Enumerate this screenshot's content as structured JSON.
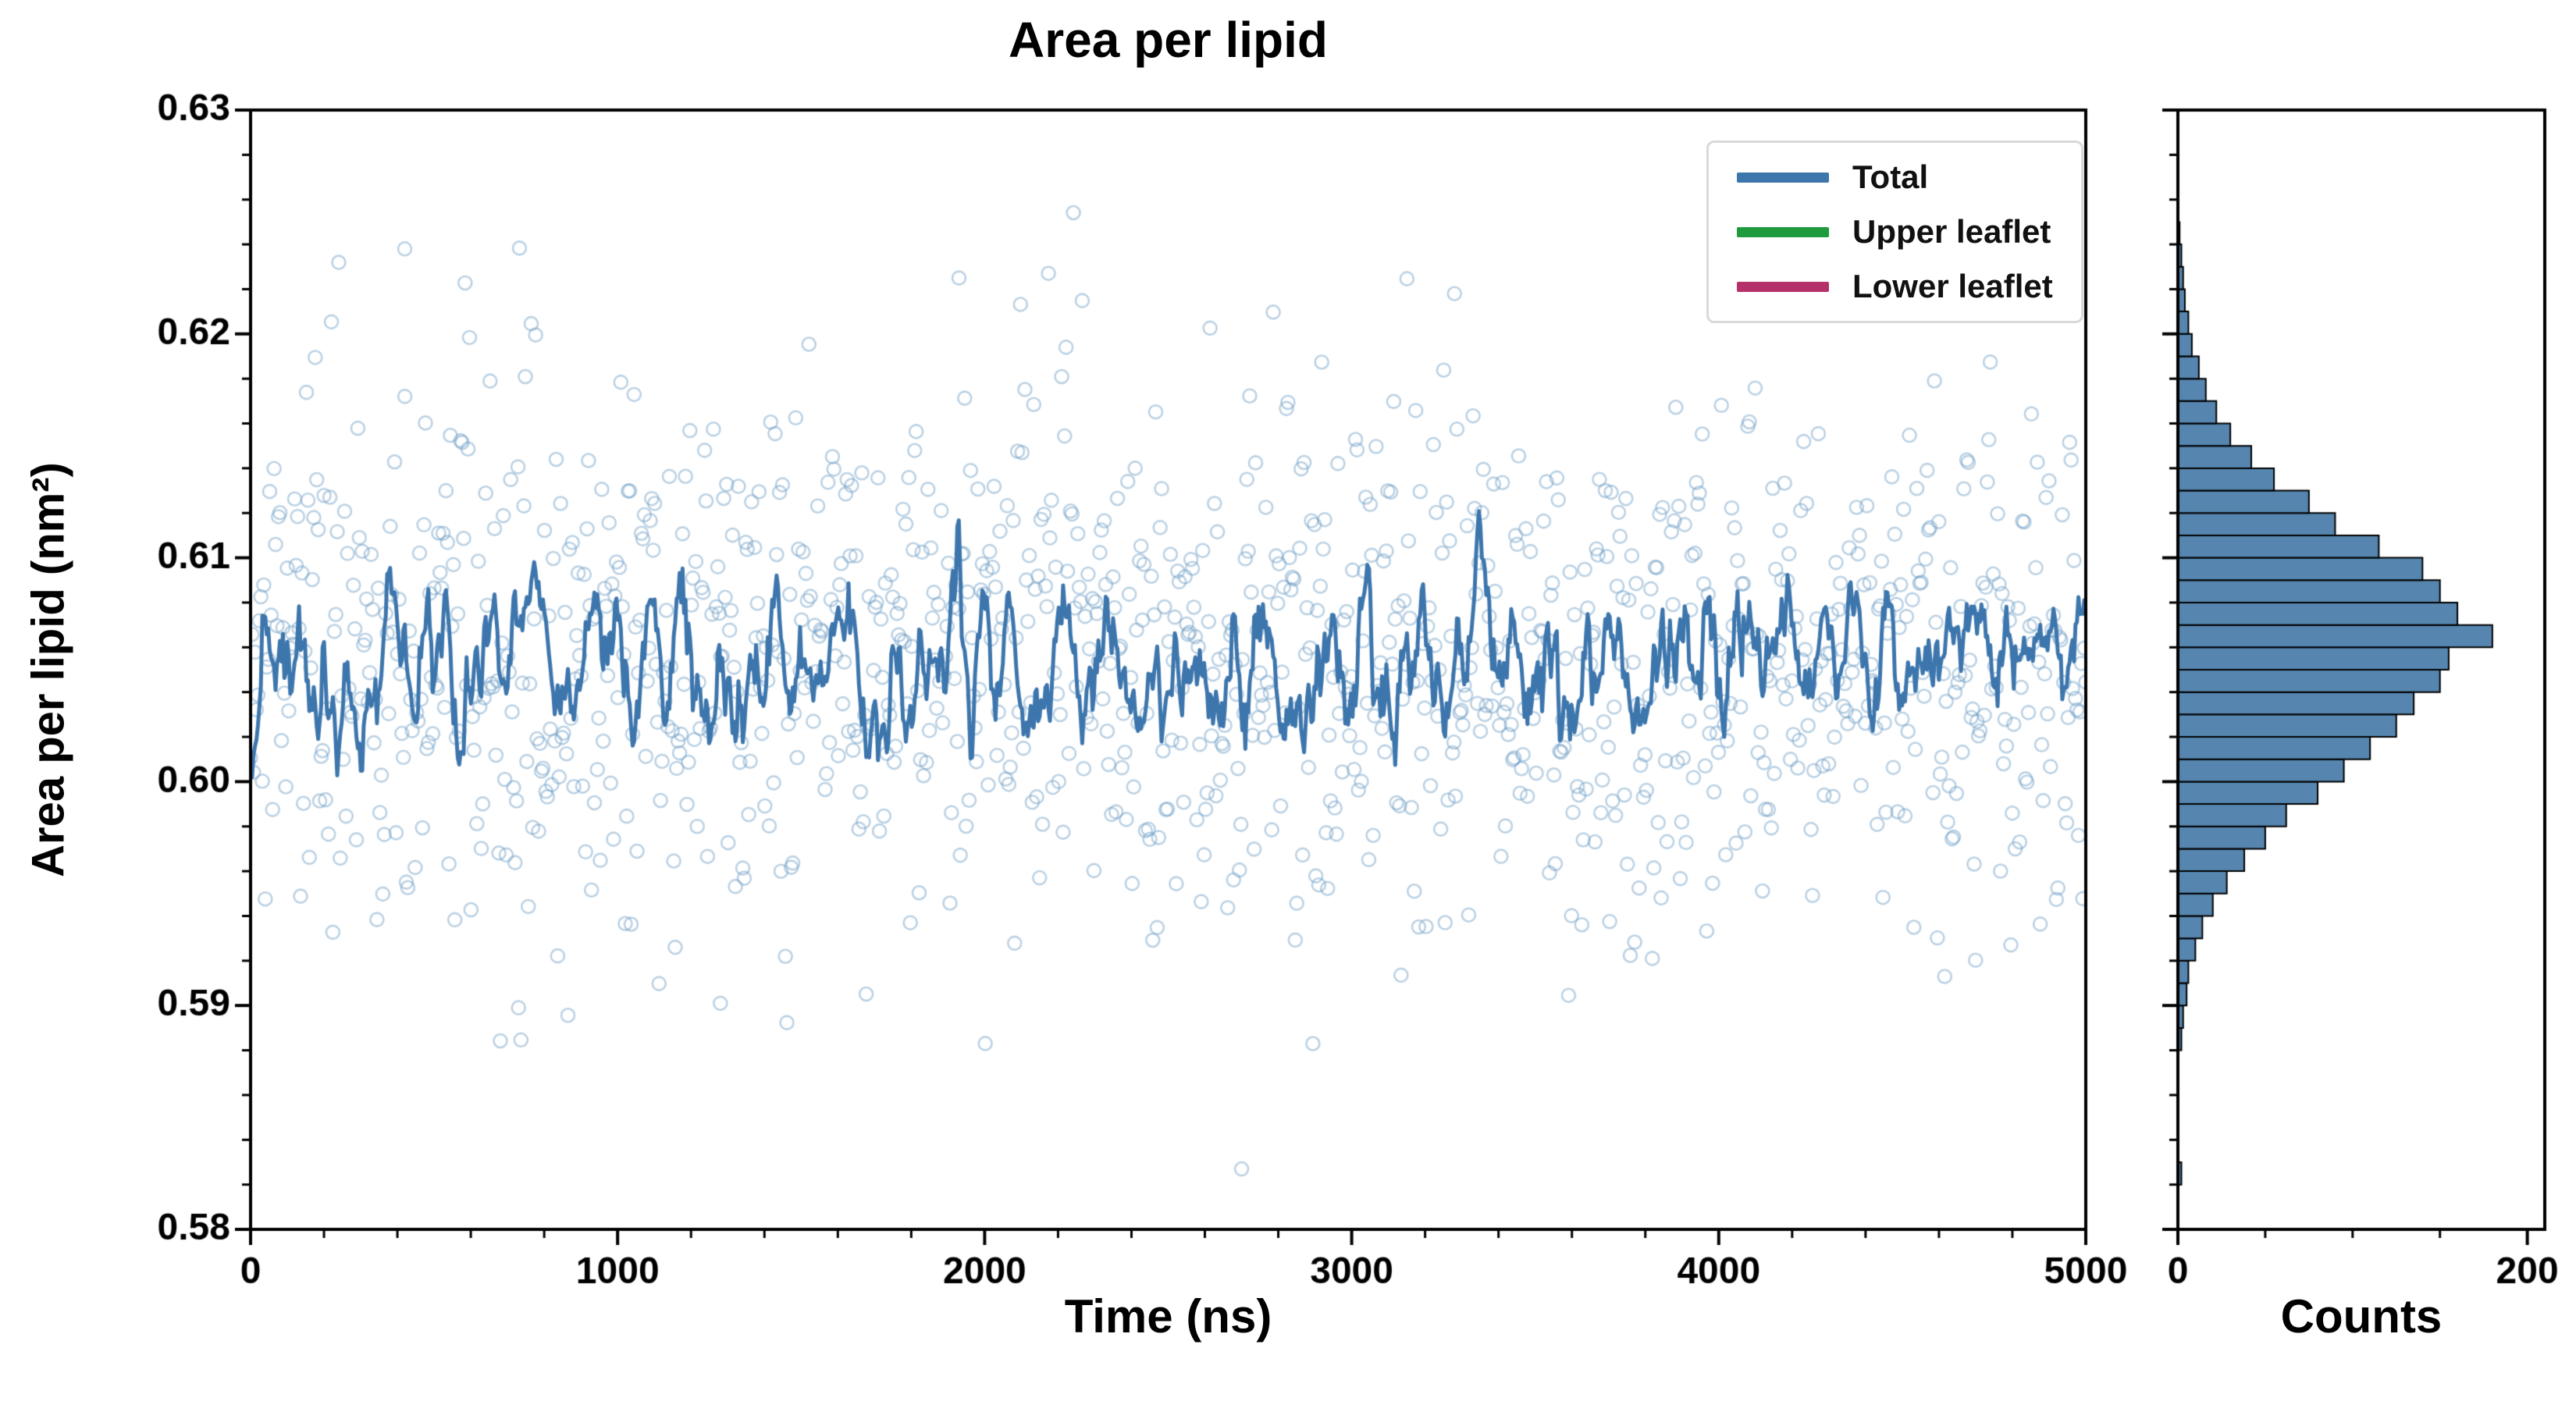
{
  "figure": {
    "background": "#ffffff"
  },
  "chart_data": [
    {
      "id": "timeseries",
      "type": "scatter",
      "title": "Area per lipid",
      "xlabel": "Time (ns)",
      "ylabel": "Area per lipid (nm²)",
      "xlim": [
        0,
        5000
      ],
      "ylim": [
        0.58,
        0.63
      ],
      "xtick_values": [
        0,
        1000,
        2000,
        3000,
        4000,
        5000
      ],
      "xtick_labels": [
        "0",
        "1000",
        "2000",
        "3000",
        "4000",
        "5000"
      ],
      "ytick_values": [
        0.58,
        0.59,
        0.6,
        0.61,
        0.62,
        0.63
      ],
      "ytick_labels": [
        "0.58",
        "0.59",
        "0.60",
        "0.61",
        "0.62",
        "0.63"
      ],
      "x_minor_step": 200,
      "y_minor_step": 0.002,
      "grid": false,
      "series": [
        {
          "name": "Total",
          "color": "#3d76ad",
          "marker_color": "#6b9bc3",
          "marker_alpha": 0.45,
          "n_points": 1250,
          "mean": 0.6055,
          "std": 0.006,
          "smooth_window": 9
        }
      ],
      "outliers": [
        [
          2700,
          0.5827
        ],
        [
          420,
          0.6238
        ],
        [
          1930,
          0.6225
        ],
        [
          3280,
          0.6218
        ],
        [
          730,
          0.5899
        ],
        [
          1280,
          0.5901
        ]
      ],
      "legend": [
        {
          "label": "Total",
          "color": "#3d76ad"
        },
        {
          "label": "Upper leaflet",
          "color": "#1f9a3d"
        },
        {
          "label": "Lower leaflet",
          "color": "#b5316a"
        }
      ],
      "legend_position": "upper right"
    },
    {
      "id": "histogram",
      "type": "bar",
      "orientation": "horizontal",
      "xlabel": "Counts",
      "xlim": [
        0,
        210
      ],
      "xtick_values": [
        0,
        200
      ],
      "xtick_labels": [
        "0",
        "200"
      ],
      "x_minor_step": 50,
      "ylim": [
        0.58,
        0.63
      ],
      "bar_color": "#4d7fab",
      "bar_edge_color": "#000000",
      "bin_start": 0.588,
      "bin_width": 0.001,
      "counts": [
        2,
        3,
        5,
        6,
        10,
        14,
        20,
        28,
        38,
        50,
        62,
        80,
        95,
        110,
        125,
        135,
        150,
        155,
        180,
        160,
        150,
        140,
        115,
        90,
        75,
        55,
        42,
        30,
        22,
        16,
        12,
        8,
        6,
        4,
        3,
        2,
        1
      ],
      "extra_bins": [
        [
          0.582,
          2
        ]
      ]
    }
  ]
}
